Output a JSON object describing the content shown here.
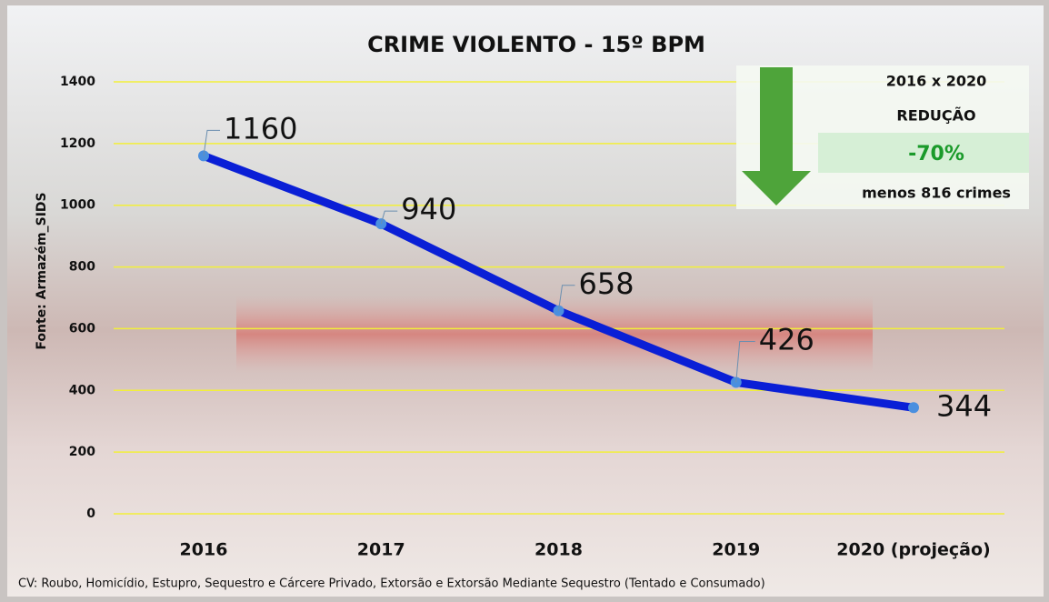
{
  "chart_data": {
    "type": "line",
    "title": "CRIME VIOLENTO - 15º BPM",
    "y_label": "Fonte: Armazém_SIDS",
    "categories": [
      "2016",
      "2017",
      "2018",
      "2019",
      "2020 (projeção)"
    ],
    "values": [
      1160,
      940,
      658,
      426,
      344
    ],
    "color": "#0a1fd6",
    "ylim": [
      0,
      1400
    ],
    "yticks": [
      0,
      200,
      400,
      600,
      800,
      1000,
      1200,
      1400
    ],
    "grid": true,
    "grid_color": "#f2ef3a",
    "footnote": "CV: Roubo, Homicídio, Estupro, Sequestro e Cárcere Privado, Extorsão e Extorsão Mediante Sequestro (Tentado e Consumado)",
    "inset": {
      "period": "2016 x 2020",
      "heading": "REDUÇÃO",
      "change": "-70%",
      "detail": "menos 816 crimes"
    }
  }
}
